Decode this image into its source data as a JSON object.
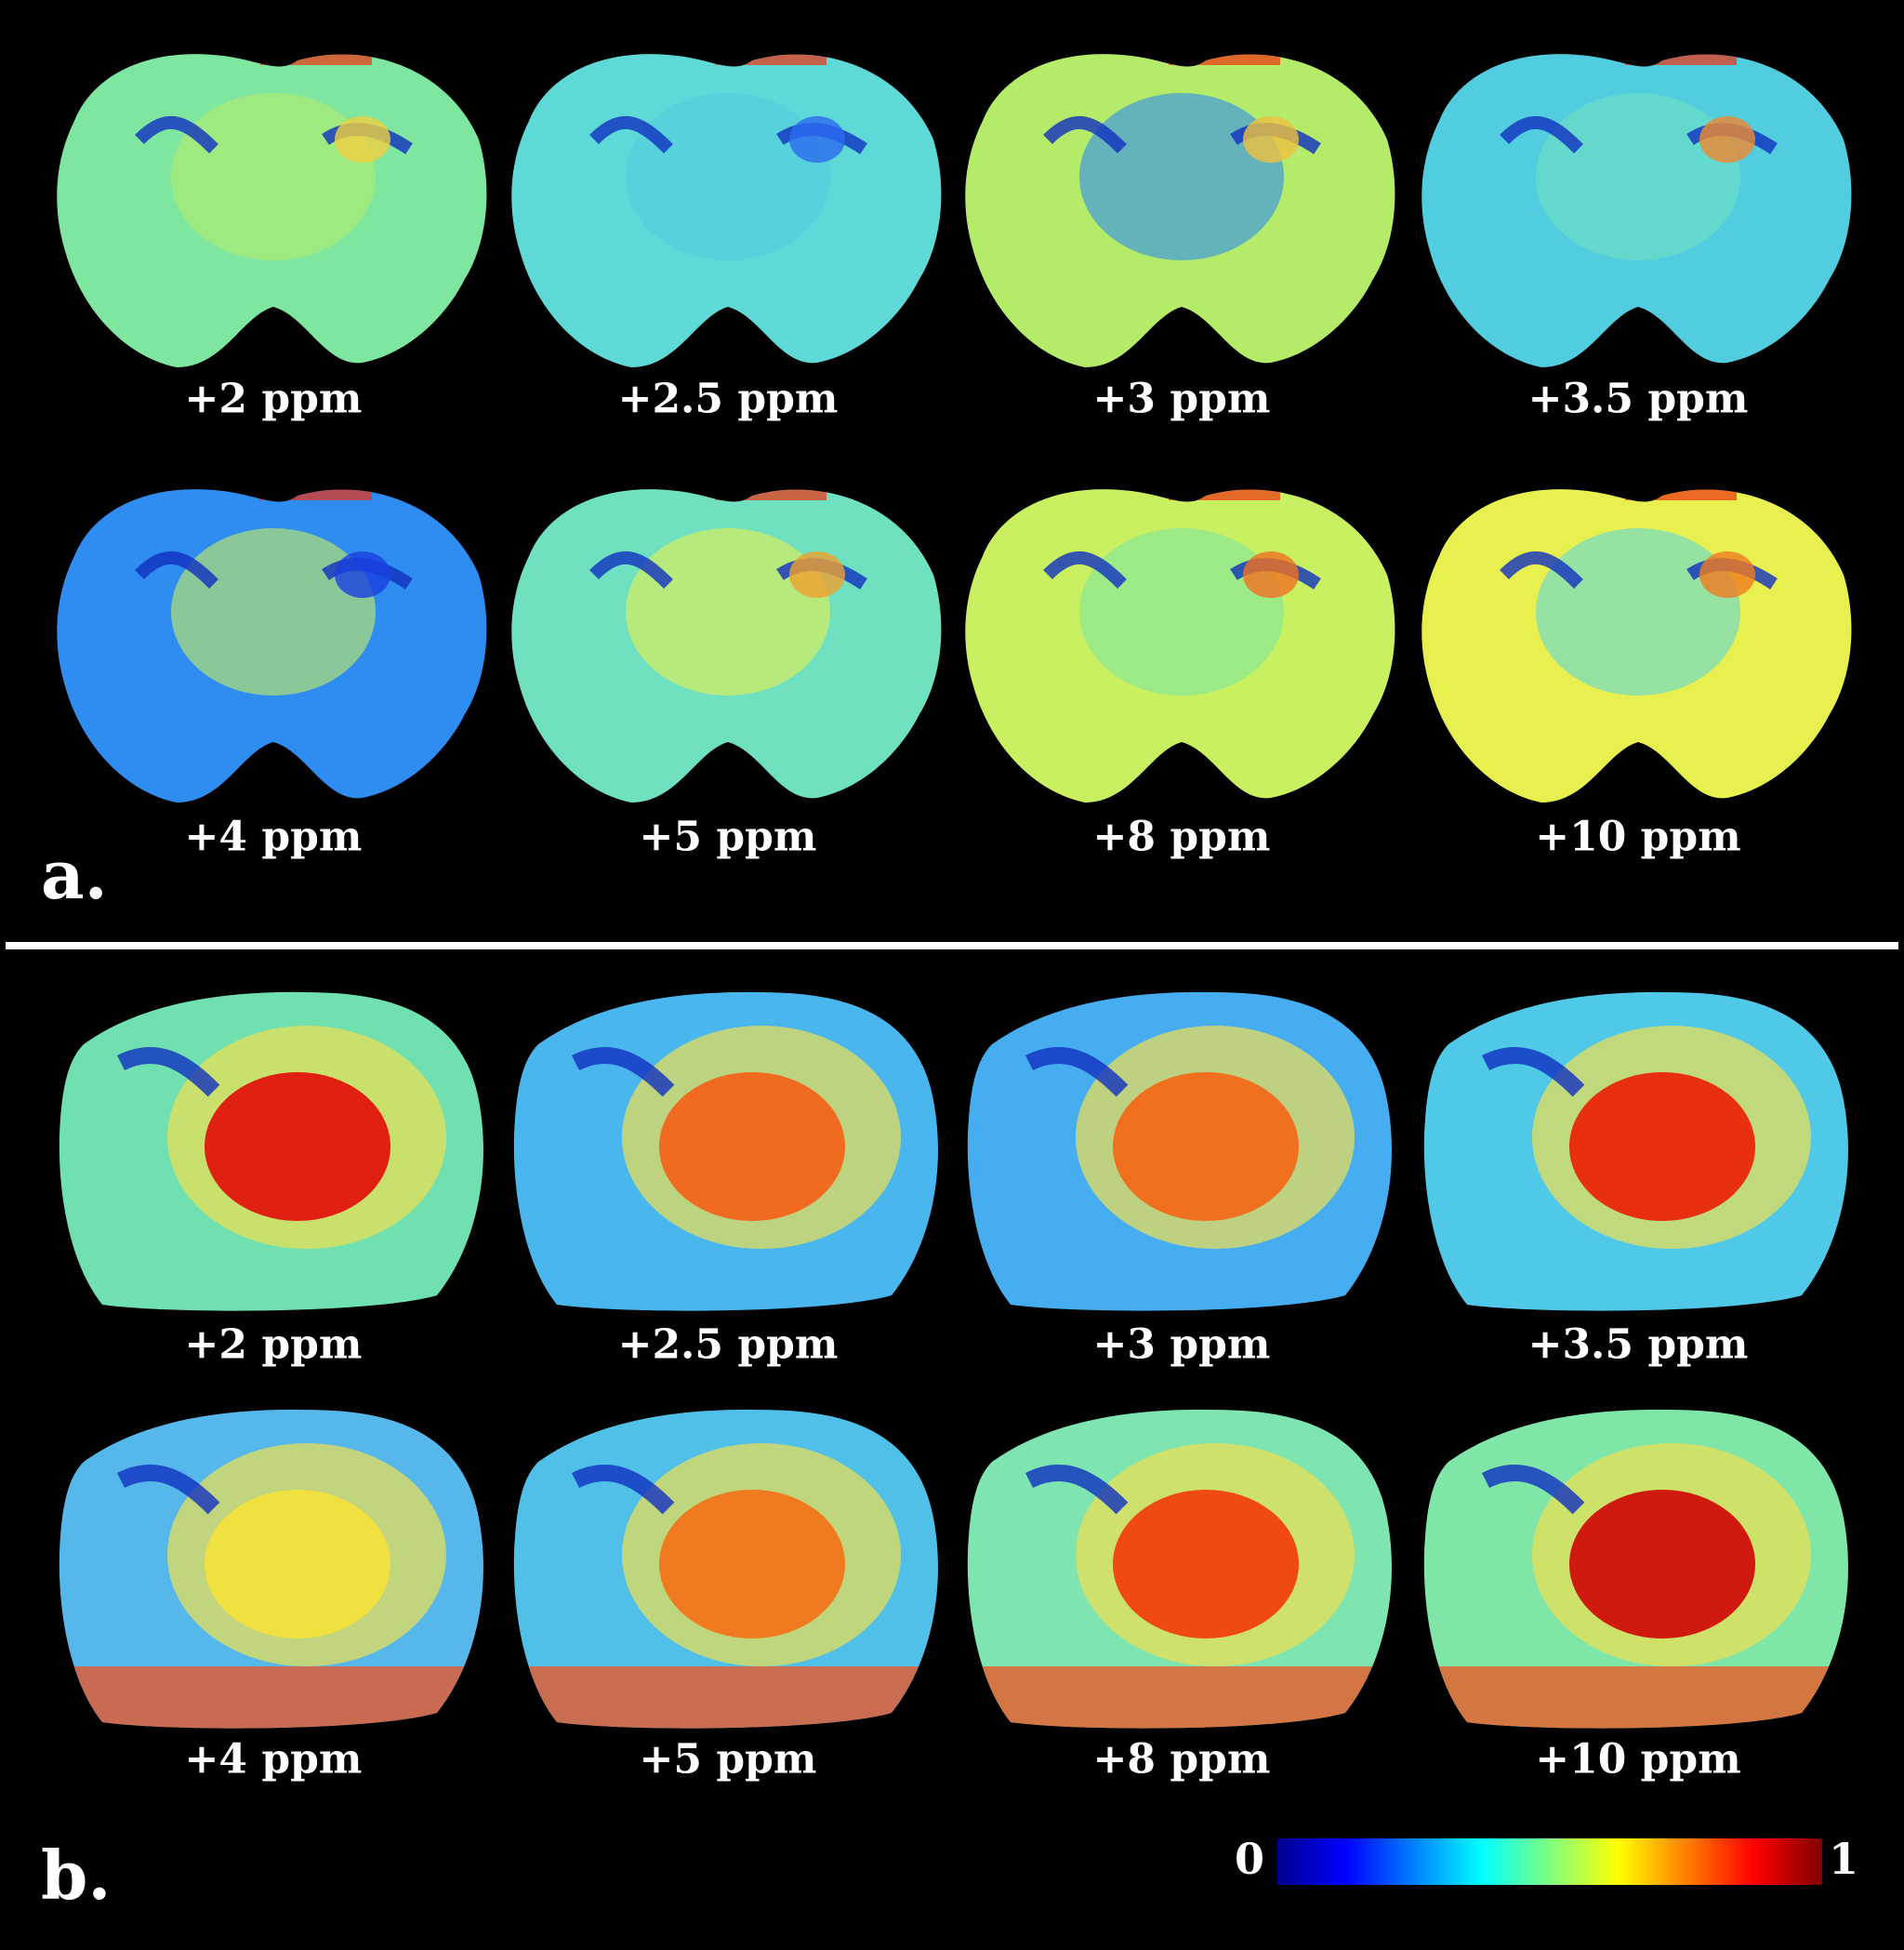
{
  "panel_a": {
    "label": "a.",
    "labels": [
      "+2 ppm",
      "+2.5 ppm",
      "+3 ppm",
      "+3.5 ppm",
      "+4 ppm",
      "+5 ppm",
      "+8 ppm",
      "+10 ppm"
    ]
  },
  "panel_b": {
    "label": "b.",
    "labels": [
      "+2 ppm",
      "+2.5 ppm",
      "+3 ppm",
      "+3.5 ppm",
      "+4 ppm",
      "+5 ppm",
      "+8 ppm",
      "+10 ppm"
    ]
  },
  "colorbar": {
    "min_label": "0",
    "max_label": "1"
  }
}
